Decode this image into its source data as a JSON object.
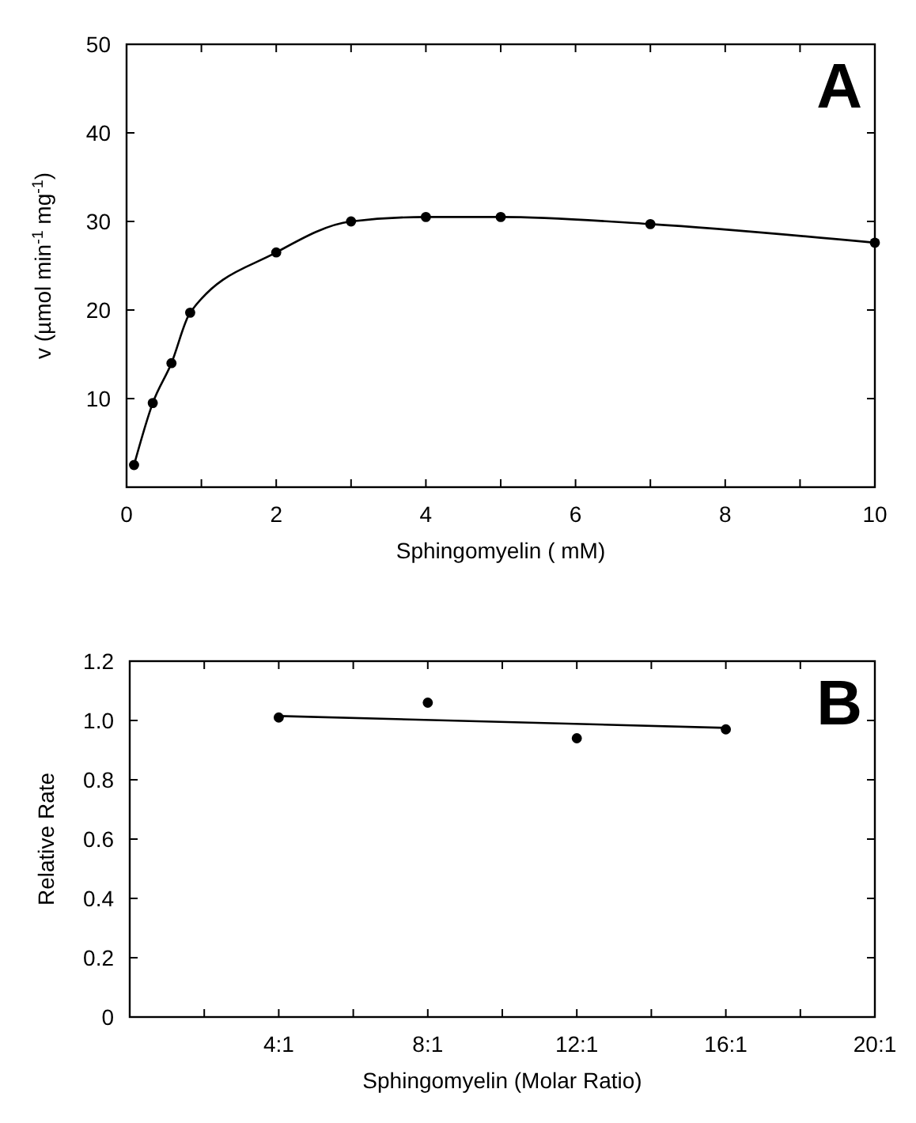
{
  "chart_data": [
    {
      "type": "line",
      "title": "A",
      "xlabel": "Sphingomyelin ( mM)",
      "ylabel": "v (µmol  min$^{-1}$ mg$^{-1}$)",
      "x": [
        0.1,
        0.35,
        0.6,
        0.85,
        2,
        3,
        4,
        5,
        7,
        10
      ],
      "series": [
        {
          "color": "#000000",
          "values": [
            2.5,
            9.5,
            14,
            19.7,
            26.5,
            30,
            30.5,
            30.5,
            29.7,
            27.6
          ]
        }
      ],
      "xlim": [
        0,
        10
      ],
      "xticks": [
        0,
        {
          "value": 1,
          "label": null
        },
        2,
        {
          "value": 3,
          "label": null
        },
        4,
        {
          "value": 5,
          "label": null
        },
        6,
        {
          "value": 7,
          "label": null
        },
        8,
        {
          "value": 9,
          "label": null
        },
        10
      ],
      "ylim": [
        0,
        50
      ],
      "yticks": [
        10,
        20,
        30,
        40,
        50
      ],
      "marker": "circle",
      "line_style": "solid",
      "grid": false
    },
    {
      "type": "scatter",
      "title": "B",
      "xlabel": "Sphingomyelin (Molar Ratio)",
      "ylabel": "Relative Rate",
      "categories": [
        null,
        "4:1",
        null,
        "8:1",
        null,
        "12:1",
        null,
        "16:1",
        null,
        "20:1"
      ],
      "series": [
        {
          "color": "#000000",
          "x": [
            "4:1",
            "8:1",
            "12:1",
            "16:1"
          ],
          "values": [
            1.01,
            1.06,
            0.94,
            0.97
          ]
        },
        {
          "type": "line",
          "marker": "none",
          "color": "#000000",
          "x": [
            "4:1",
            "16:1"
          ],
          "values": [
            1.015,
            0.975
          ]
        }
      ],
      "ylim": [
        0,
        1.2
      ],
      "yticks": [
        0,
        0.2,
        0.4,
        0.6,
        0.8,
        {
          "value": 1,
          "label": "1.0"
        },
        1.2
      ],
      "marker": "circle",
      "line_style": "solid",
      "grid": false
    }
  ]
}
